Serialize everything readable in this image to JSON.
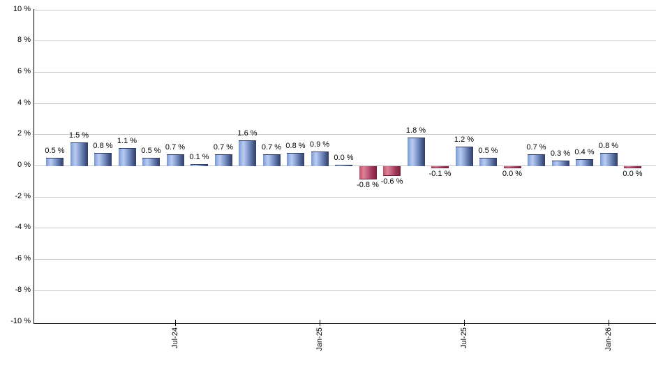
{
  "chart_data": {
    "type": "bar",
    "title": "",
    "unit": "%",
    "ylim": [
      -10,
      10
    ],
    "grid": true,
    "legend": null,
    "y_ticks": [
      {
        "value": 10,
        "label": "10 %"
      },
      {
        "value": 8,
        "label": "8 %"
      },
      {
        "value": 6,
        "label": "6 %"
      },
      {
        "value": 4,
        "label": "4 %"
      },
      {
        "value": 2,
        "label": "2 %"
      },
      {
        "value": 0,
        "label": "0 %"
      },
      {
        "value": -2,
        "label": "-2 %"
      },
      {
        "value": -4,
        "label": "-4 %"
      },
      {
        "value": -6,
        "label": "-6 %"
      },
      {
        "value": -8,
        "label": "-8 %"
      },
      {
        "value": -10,
        "label": "-10 %"
      }
    ],
    "x_ticks": [
      {
        "bar_index": 5,
        "label": "Jul-24"
      },
      {
        "bar_index": 11,
        "label": "Jan-25"
      },
      {
        "bar_index": 17,
        "label": "Jul-25"
      },
      {
        "bar_index": 23,
        "label": "Jan-26"
      }
    ],
    "bars": [
      {
        "label": "0.5 %",
        "value": 0.5,
        "negative": false
      },
      {
        "label": "1.5 %",
        "value": 1.5,
        "negative": false
      },
      {
        "label": "0.8 %",
        "value": 0.8,
        "negative": false
      },
      {
        "label": "1.1 %",
        "value": 1.1,
        "negative": false
      },
      {
        "label": "0.5 %",
        "value": 0.5,
        "negative": false
      },
      {
        "label": "0.7 %",
        "value": 0.7,
        "negative": false
      },
      {
        "label": "0.1 %",
        "value": 0.1,
        "negative": false
      },
      {
        "label": "0.7 %",
        "value": 0.7,
        "negative": false
      },
      {
        "label": "1.6 %",
        "value": 1.6,
        "negative": false
      },
      {
        "label": "0.7 %",
        "value": 0.7,
        "negative": false
      },
      {
        "label": "0.8 %",
        "value": 0.8,
        "negative": false
      },
      {
        "label": "0.9 %",
        "value": 0.9,
        "negative": false
      },
      {
        "label": "0.0 %",
        "value": 0.0,
        "negative": false
      },
      {
        "label": "-0.8 %",
        "value": -0.8,
        "negative": true
      },
      {
        "label": "-0.6 %",
        "value": -0.6,
        "negative": true
      },
      {
        "label": "1.8 %",
        "value": 1.8,
        "negative": false
      },
      {
        "label": "-0.1 %",
        "value": -0.1,
        "negative": true
      },
      {
        "label": "1.2 %",
        "value": 1.2,
        "negative": false
      },
      {
        "label": "0.5 %",
        "value": 0.5,
        "negative": false
      },
      {
        "label": "0.0 %",
        "value": 0.0,
        "negative": true
      },
      {
        "label": "0.7 %",
        "value": 0.7,
        "negative": false
      },
      {
        "label": "0.3 %",
        "value": 0.3,
        "negative": false
      },
      {
        "label": "0.4 %",
        "value": 0.4,
        "negative": false
      },
      {
        "label": "0.8 %",
        "value": 0.8,
        "negative": false
      },
      {
        "label": "0.0 %",
        "value": 0.0,
        "negative": true
      }
    ],
    "colors": {
      "positive_light": "#b9cbf1",
      "positive_mid": "#7898d6",
      "positive_dark": "#2f3e66",
      "negative_light": "#dd8298",
      "negative_mid": "#c24f6d",
      "negative_dark": "#7e1d3c",
      "gridline": "#c6c6c6",
      "axis": "#000000",
      "text": "#000000"
    }
  }
}
